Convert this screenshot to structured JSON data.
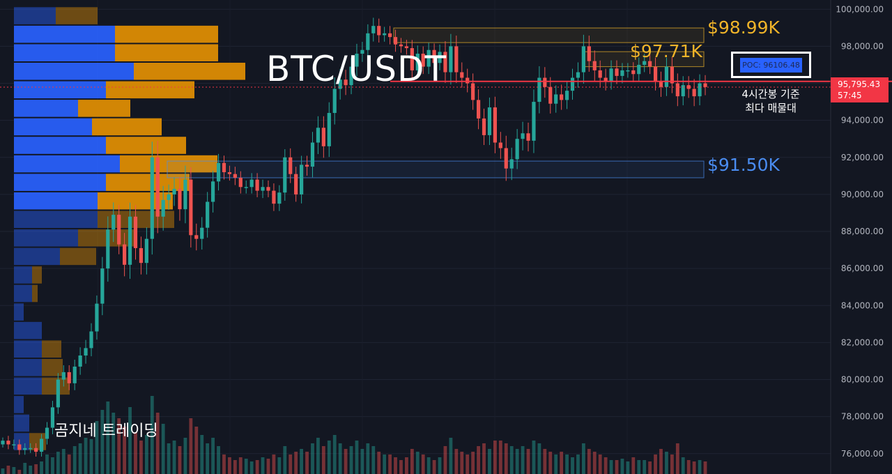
{
  "title": "BTC/USDT",
  "watermark": "곰지네 트레이딩",
  "note": {
    "line1": "4시간봉 기준",
    "line2": "최다 매물대"
  },
  "levels": {
    "upper": "$98.99K",
    "middle": "$97.71K",
    "lower": "$91.50K"
  },
  "poc_label": "POC: 96106.48",
  "last_price": {
    "price": "95,795.43",
    "countdown": "57:45"
  },
  "colors": {
    "bg": "#131722",
    "up": "#26a69a",
    "down": "#ef5350",
    "vp_blue": "#2962ff",
    "vp_orange": "#f59a00",
    "level_gold": "#f0b429",
    "level_blue": "#4a8cf0",
    "last_line": "#f23645"
  },
  "chart_data": {
    "type": "candlestick",
    "y_axis": {
      "ylim": [
        74900,
        100500
      ],
      "ticks": [
        "100,000.00",
        "98,000.00",
        "96,000.00",
        "94,000.00",
        "92,000.00",
        "90,000.00",
        "88,000.00",
        "86,000.00",
        "84,000.00",
        "82,000.00",
        "80,000.00",
        "78,000.00",
        "76,000.00"
      ],
      "tick_values": [
        100000,
        98000,
        96000,
        94000,
        92000,
        90000,
        88000,
        86000,
        84000,
        82000,
        80000,
        78000,
        76000
      ]
    },
    "last_price": 95795.43,
    "poc": 96106.48,
    "zones": [
      {
        "name": "upper",
        "low": 98200,
        "high": 98990,
        "color": "gold"
      },
      {
        "name": "middle",
        "low": 96900,
        "high": 97710,
        "color": "gold"
      },
      {
        "name": "lower",
        "low": 90900,
        "high": 91800,
        "color": "blue"
      }
    ],
    "volume_profile": [
      {
        "price": 99650,
        "buy": 60,
        "sell": 60
      },
      {
        "price": 98650,
        "buy": 145,
        "sell": 148
      },
      {
        "price": 97650,
        "buy": 145,
        "sell": 148
      },
      {
        "price": 96650,
        "buy": 172,
        "sell": 160
      },
      {
        "price": 95650,
        "buy": 132,
        "sell": 127
      },
      {
        "price": 94650,
        "buy": 92,
        "sell": 75
      },
      {
        "price": 93650,
        "buy": 112,
        "sell": 100
      },
      {
        "price": 92650,
        "buy": 132,
        "sell": 115
      },
      {
        "price": 91650,
        "buy": 152,
        "sell": 140
      },
      {
        "price": 90650,
        "buy": 132,
        "sell": 120
      },
      {
        "price": 89650,
        "buy": 120,
        "sell": 108
      },
      {
        "price": 88650,
        "buy": 120,
        "sell": 110
      },
      {
        "price": 87650,
        "buy": 92,
        "sell": 80
      },
      {
        "price": 86650,
        "buy": 66,
        "sell": 52
      },
      {
        "price": 85650,
        "buy": 26,
        "sell": 14
      },
      {
        "price": 84650,
        "buy": 26,
        "sell": 8
      },
      {
        "price": 83650,
        "buy": 14,
        "sell": 0
      },
      {
        "price": 82650,
        "buy": 40,
        "sell": 0
      },
      {
        "price": 81650,
        "buy": 40,
        "sell": 28
      },
      {
        "price": 80650,
        "buy": 40,
        "sell": 30
      },
      {
        "price": 79650,
        "buy": 40,
        "sell": 40
      },
      {
        "price": 78650,
        "buy": 14,
        "sell": 0
      },
      {
        "price": 77650,
        "buy": 22,
        "sell": 0
      },
      {
        "price": 76650,
        "buy": 22,
        "sell": 24
      }
    ],
    "close_path": [
      [
        76700,
        4
      ],
      [
        76500,
        8
      ],
      [
        76500,
        8
      ],
      [
        76200,
        8
      ],
      [
        76300,
        8
      ],
      [
        76300,
        8
      ],
      [
        76100,
        8
      ],
      [
        76800,
        8
      ],
      [
        77400,
        10
      ],
      [
        78500,
        12
      ],
      [
        80000,
        12
      ],
      [
        80400,
        13
      ],
      [
        79800,
        13
      ],
      [
        80700,
        13
      ],
      [
        81300,
        16
      ],
      [
        81700,
        16
      ],
      [
        82600,
        16
      ],
      [
        84100,
        16
      ],
      [
        86000,
        24
      ],
      [
        88100,
        28
      ],
      [
        88900,
        26
      ],
      [
        87300,
        20
      ],
      [
        86200,
        24
      ],
      [
        88800,
        30
      ],
      [
        87100,
        24
      ],
      [
        86300,
        24
      ],
      [
        87600,
        24
      ],
      [
        92000,
        34
      ],
      [
        88800,
        36
      ],
      [
        89700,
        30
      ],
      [
        90000,
        20
      ],
      [
        90300,
        24
      ],
      [
        89200,
        24
      ],
      [
        90800,
        30
      ],
      [
        87800,
        26
      ],
      [
        87600,
        24
      ],
      [
        88200,
        22
      ],
      [
        89600,
        20
      ],
      [
        90700,
        22
      ],
      [
        91700,
        18
      ],
      [
        91200,
        14
      ],
      [
        91100,
        12
      ],
      [
        90900,
        14
      ],
      [
        90400,
        12
      ],
      [
        90400,
        12
      ],
      [
        90800,
        12
      ],
      [
        90200,
        12
      ],
      [
        90400,
        14
      ],
      [
        90200,
        12
      ],
      [
        89500,
        14
      ],
      [
        90100,
        14
      ],
      [
        92000,
        16
      ],
      [
        91100,
        18
      ],
      [
        90000,
        14
      ],
      [
        91600,
        18
      ],
      [
        91500,
        18
      ],
      [
        92800,
        22
      ],
      [
        93600,
        24
      ],
      [
        92600,
        24
      ],
      [
        94400,
        22
      ],
      [
        95700,
        24
      ],
      [
        96200,
        22
      ],
      [
        95900,
        20
      ],
      [
        96900,
        18
      ],
      [
        97600,
        20
      ],
      [
        97800,
        16
      ],
      [
        98700,
        18
      ],
      [
        99100,
        16
      ],
      [
        98600,
        14
      ],
      [
        98700,
        12
      ],
      [
        98500,
        14
      ],
      [
        98100,
        14
      ],
      [
        98000,
        12
      ],
      [
        97900,
        12
      ],
      [
        96700,
        16
      ],
      [
        97600,
        16
      ],
      [
        96900,
        14
      ],
      [
        97800,
        14
      ],
      [
        97100,
        12
      ],
      [
        97700,
        14
      ],
      [
        96600,
        22
      ],
      [
        98000,
        26
      ],
      [
        96600,
        22
      ],
      [
        96300,
        20
      ],
      [
        96000,
        18
      ],
      [
        95100,
        20
      ],
      [
        94100,
        22
      ],
      [
        93200,
        20
      ],
      [
        94700,
        20
      ],
      [
        92800,
        22
      ],
      [
        92500,
        22
      ],
      [
        91400,
        26
      ],
      [
        91900,
        24
      ],
      [
        93000,
        20
      ],
      [
        93300,
        24
      ],
      [
        92900,
        22
      ],
      [
        95000,
        26
      ],
      [
        96300,
        24
      ],
      [
        95800,
        22
      ],
      [
        94900,
        20
      ],
      [
        95400,
        18
      ],
      [
        95100,
        20
      ],
      [
        95600,
        18
      ],
      [
        96300,
        18
      ],
      [
        96600,
        20
      ],
      [
        98000,
        24
      ],
      [
        97200,
        22
      ],
      [
        96700,
        22
      ],
      [
        96300,
        20
      ],
      [
        96100,
        18
      ],
      [
        96800,
        16
      ],
      [
        96400,
        16
      ],
      [
        96700,
        14
      ],
      [
        96700,
        14
      ],
      [
        96500,
        16
      ],
      [
        97000,
        14
      ],
      [
        97200,
        14
      ],
      [
        96900,
        14
      ],
      [
        96100,
        18
      ],
      [
        95800,
        20
      ],
      [
        96900,
        18
      ],
      [
        96000,
        20
      ],
      [
        95300,
        20
      ],
      [
        95900,
        18
      ],
      [
        95700,
        18
      ],
      [
        95300,
        20
      ],
      [
        96000,
        18
      ],
      [
        95800,
        16
      ]
    ],
    "volume": [
      4,
      6,
      5,
      3,
      8,
      6,
      7,
      9,
      14,
      12,
      16,
      18,
      14,
      20,
      22,
      26,
      25,
      38,
      46,
      52,
      44,
      40,
      34,
      48,
      30,
      24,
      28,
      56,
      44,
      36,
      22,
      24,
      20,
      26,
      40,
      34,
      28,
      22,
      26,
      20,
      14,
      12,
      10,
      12,
      11,
      9,
      10,
      12,
      11,
      14,
      12,
      20,
      14,
      16,
      18,
      16,
      22,
      26,
      20,
      24,
      28,
      22,
      18,
      20,
      24,
      18,
      22,
      20,
      16,
      14,
      14,
      12,
      10,
      12,
      18,
      16,
      14,
      12,
      10,
      12,
      20,
      26,
      18,
      16,
      14,
      16,
      20,
      22,
      18,
      24,
      24,
      22,
      20,
      18,
      20,
      18,
      24,
      22,
      18,
      16,
      14,
      16,
      14,
      12,
      14,
      22,
      18,
      16,
      14,
      12,
      10,
      10,
      11,
      9,
      12,
      10,
      10,
      9,
      14,
      18,
      16,
      14,
      22,
      12,
      10,
      9,
      10,
      9
    ]
  }
}
